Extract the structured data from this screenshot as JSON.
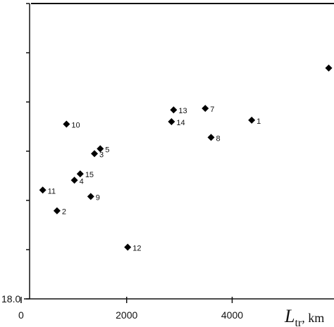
{
  "chart_data": {
    "type": "scatter",
    "title": "",
    "xlabel": {
      "symbol": "L",
      "subscript": "tr",
      "unit": ", km"
    },
    "ylabel": "",
    "xlim": [
      -400,
      5930
    ],
    "ylim": [
      18.0,
      18.6
    ],
    "x_ticks": [
      0,
      2000,
      4000
    ],
    "y_tick_labels": [
      {
        "value": 18.0,
        "label": "18.0"
      }
    ],
    "grid": false,
    "legend": "none",
    "marker_color": "#000000",
    "points": [
      {
        "id": "1",
        "x": 4370,
        "y": 18.363
      },
      {
        "id": "2",
        "x": 680,
        "y": 18.179
      },
      {
        "id": "3",
        "x": 1390,
        "y": 18.295
      },
      {
        "id": "4",
        "x": 1010,
        "y": 18.241
      },
      {
        "id": "5",
        "x": 1500,
        "y": 18.305
      },
      {
        "id": "6",
        "x": 5830,
        "y": 18.469
      },
      {
        "id": "7",
        "x": 3490,
        "y": 18.387
      },
      {
        "id": "8",
        "x": 3600,
        "y": 18.328
      },
      {
        "id": "9",
        "x": 1320,
        "y": 18.208
      },
      {
        "id": "10",
        "x": 860,
        "y": 18.355
      },
      {
        "id": "11",
        "x": 410,
        "y": 18.221
      },
      {
        "id": "12",
        "x": 2020,
        "y": 18.105
      },
      {
        "id": "13",
        "x": 2890,
        "y": 18.384
      },
      {
        "id": "14",
        "x": 2850,
        "y": 18.36
      },
      {
        "id": "15",
        "x": 1120,
        "y": 18.254
      }
    ]
  }
}
